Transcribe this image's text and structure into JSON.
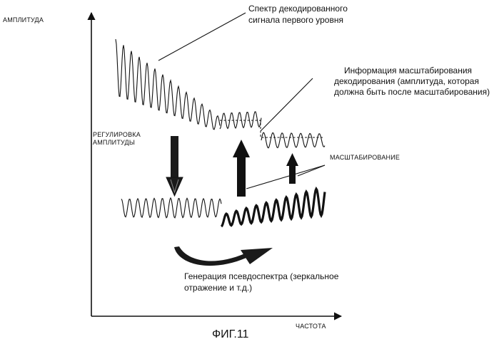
{
  "labels": {
    "y_axis": "АМПЛИТУДА",
    "x_axis": "ЧАСТОТА",
    "amplitude_adjust_line1": "РЕГУЛИРОВКА",
    "amplitude_adjust_line2": "АМПЛИТУДЫ",
    "spectrum_line1": "Спектр декодированного",
    "spectrum_line2": "сигнала первого уровня",
    "scaling_info_line1": "Информация масштабирования",
    "scaling_info_line2": "декодирования (амплитуда, которая",
    "scaling_info_line3": "должна быть после масштабирования)",
    "scaling": "МАСШТАБИРОВАНИЕ",
    "pseudo_line1": "Генерация псевдоспектра (зеркальное",
    "pseudo_line2": "отражение и т.д.)",
    "figure_caption": "ФИГ.11"
  },
  "colors": {
    "ink": "#111111",
    "background": "#ffffff"
  }
}
